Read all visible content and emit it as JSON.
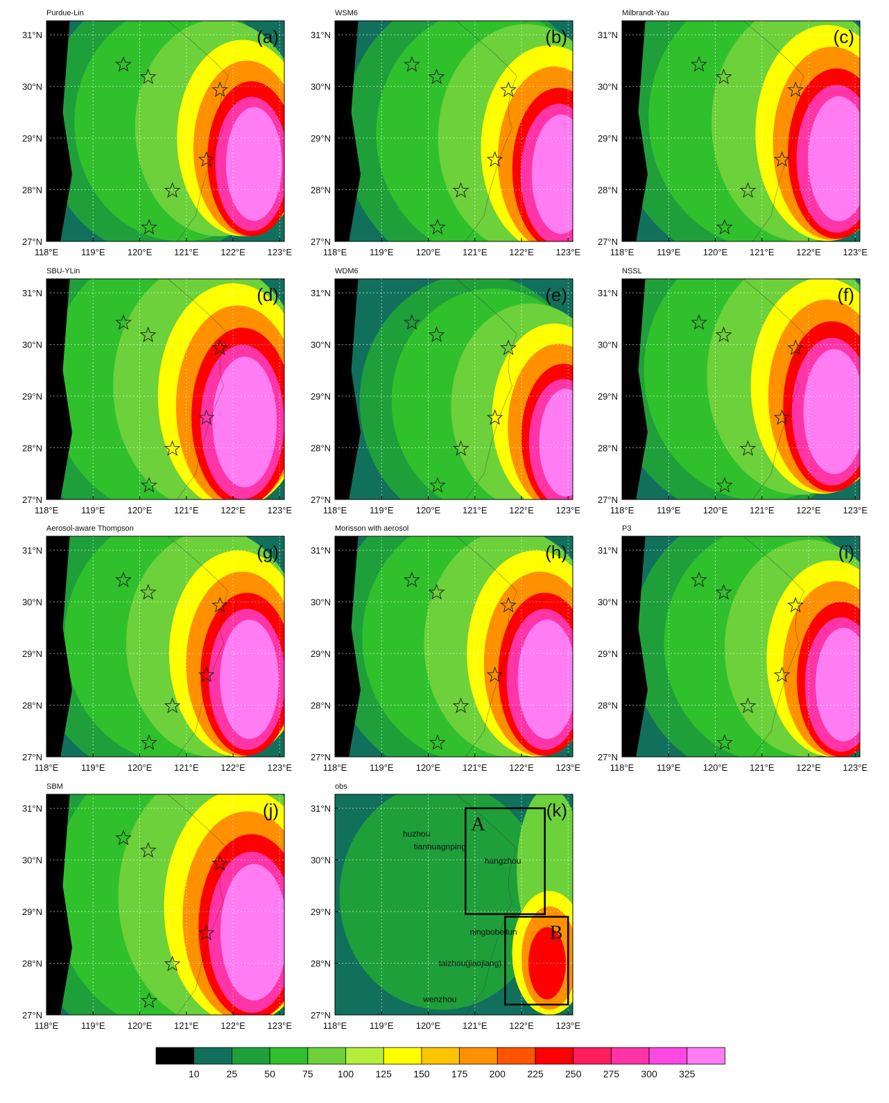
{
  "panels": [
    {
      "title": "Purdue-Lin",
      "letter": "(a)"
    },
    {
      "title": "WSM6",
      "letter": "(b)"
    },
    {
      "title": "Milbrandt-Yau",
      "letter": "(c)"
    },
    {
      "title": "SBU-YLin",
      "letter": "(d)"
    },
    {
      "title": "WDM6",
      "letter": "(e)"
    },
    {
      "title": "NSSL",
      "letter": "(f)"
    },
    {
      "title": "Aerosol-aware Thompson",
      "letter": "(g)"
    },
    {
      "title": "Morisson with aerosol",
      "letter": "(h)"
    },
    {
      "title": "P3",
      "letter": "(i)"
    },
    {
      "title": "SBM",
      "letter": "(j)"
    },
    {
      "title": "obs",
      "letter": "(k)",
      "cities": [
        "huzhou",
        "tianhuagnping",
        "hangzhou",
        "ningbobeilun",
        "taizhou(jiaojiang)",
        "wenzhou"
      ],
      "boxes": [
        "A",
        "B"
      ]
    }
  ],
  "axes": {
    "xlim": [
      118,
      123.1
    ],
    "ylim": [
      27,
      31.27
    ],
    "xticks": [
      {
        "value": 118,
        "label": "118°E"
      },
      {
        "value": 119,
        "label": "119°E"
      },
      {
        "value": 120,
        "label": "120°E"
      },
      {
        "value": 121,
        "label": "121°E"
      },
      {
        "value": 122,
        "label": "122°E"
      },
      {
        "value": 123,
        "label": "123°E"
      }
    ],
    "yticks": [
      {
        "value": 27,
        "label": "27°N"
      },
      {
        "value": 28,
        "label": "28°N"
      },
      {
        "value": 29,
        "label": "29°N"
      },
      {
        "value": 30,
        "label": "30°N"
      },
      {
        "value": 31,
        "label": "31°N"
      }
    ]
  },
  "colorbar": {
    "levels": [
      10,
      25,
      50,
      75,
      100,
      125,
      150,
      175,
      200,
      225,
      250,
      275,
      300,
      325
    ],
    "colors": [
      "#000000",
      "#11705c",
      "#1f9f3a",
      "#30c02c",
      "#6cd13a",
      "#b4ee3a",
      "#ffff00",
      "#ffc400",
      "#ff9000",
      "#ff5400",
      "#ff0000",
      "#ff1e5c",
      "#ff34a6",
      "#ff48e4",
      "#ff7cf2"
    ]
  }
}
